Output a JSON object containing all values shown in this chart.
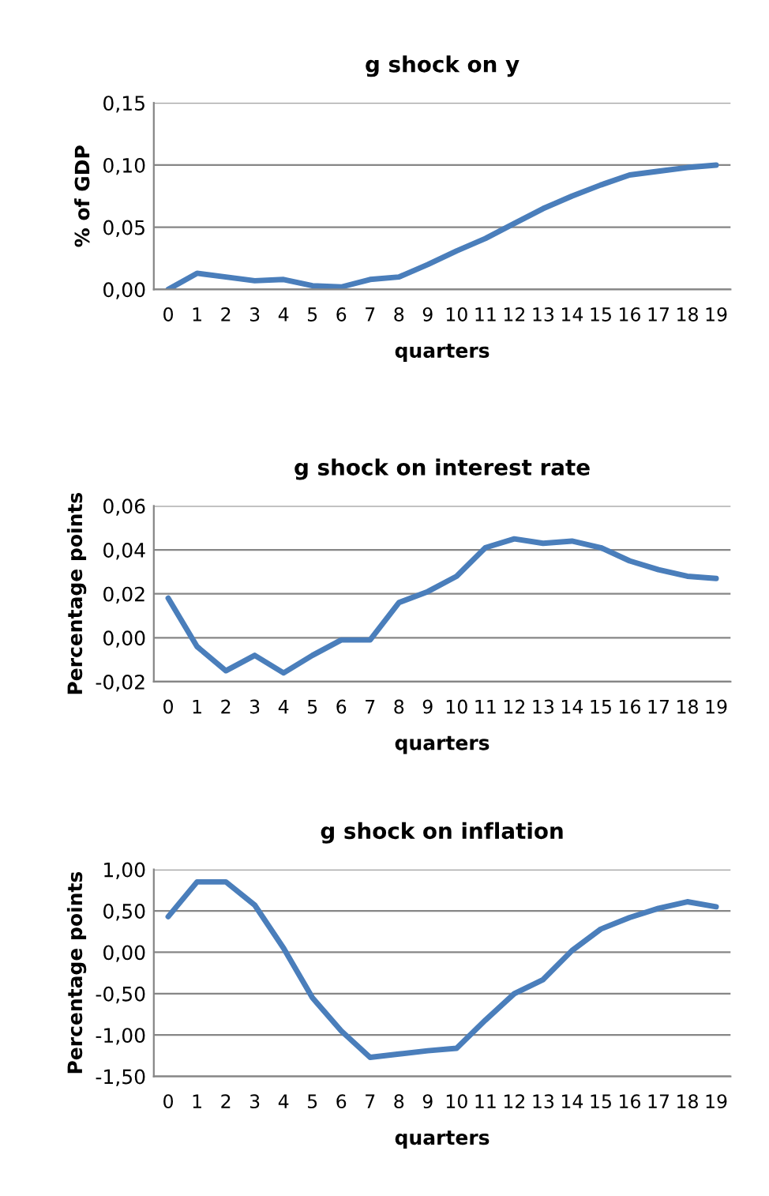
{
  "chart_data": [
    {
      "type": "line",
      "title": "g shock on y",
      "xlabel": "quarters",
      "ylabel": "% of GDP",
      "categories": [
        "0",
        "1",
        "2",
        "3",
        "4",
        "5",
        "6",
        "7",
        "8",
        "9",
        "10",
        "11",
        "12",
        "13",
        "14",
        "15",
        "16",
        "17",
        "18",
        "19"
      ],
      "series": [
        {
          "color": "#4a7ebb",
          "values": [
            0.0,
            0.013,
            0.01,
            0.007,
            0.008,
            0.003,
            0.002,
            0.008,
            0.01,
            0.02,
            0.031,
            0.041,
            0.053,
            0.065,
            0.075,
            0.084,
            0.092,
            0.095,
            0.098,
            0.1
          ]
        }
      ],
      "ylim": [
        0,
        0.15
      ],
      "yticks": [
        {
          "value": 0,
          "label": "0,00"
        },
        {
          "value": 0.05,
          "label": "0,05"
        },
        {
          "value": 0.1,
          "label": "0,10"
        },
        {
          "value": 0.15,
          "label": "0,15"
        }
      ],
      "grid": "y"
    },
    {
      "type": "line",
      "title": "g shock on interest rate",
      "xlabel": "quarters",
      "ylabel": "Percentage points",
      "categories": [
        "0",
        "1",
        "2",
        "3",
        "4",
        "5",
        "6",
        "7",
        "8",
        "9",
        "10",
        "11",
        "12",
        "13",
        "14",
        "15",
        "16",
        "17",
        "18",
        "19"
      ],
      "series": [
        {
          "color": "#4a7ebb",
          "values": [
            0.018,
            -0.004,
            -0.015,
            -0.008,
            -0.016,
            -0.008,
            -0.001,
            -0.001,
            0.016,
            0.021,
            0.028,
            0.041,
            0.045,
            0.043,
            0.044,
            0.041,
            0.035,
            0.031,
            0.028,
            0.027
          ]
        }
      ],
      "ylim": [
        -0.02,
        0.06
      ],
      "yticks": [
        {
          "value": -0.02,
          "label": "-0,02"
        },
        {
          "value": 0,
          "label": "0,00"
        },
        {
          "value": 0.02,
          "label": "0,02"
        },
        {
          "value": 0.04,
          "label": "0,04"
        },
        {
          "value": 0.06,
          "label": "0,06"
        }
      ],
      "grid": "y"
    },
    {
      "type": "line",
      "title": "g shock on inflation",
      "xlabel": "quarters",
      "ylabel": "Percentage points",
      "categories": [
        "0",
        "1",
        "2",
        "3",
        "4",
        "5",
        "6",
        "7",
        "8",
        "9",
        "10",
        "11",
        "12",
        "13",
        "14",
        "15",
        "16",
        "17",
        "18",
        "19"
      ],
      "series": [
        {
          "color": "#4a7ebb",
          "values": [
            0.43,
            0.85,
            0.85,
            0.57,
            0.05,
            -0.55,
            -0.95,
            -1.27,
            -1.23,
            -1.19,
            -1.16,
            -0.82,
            -0.5,
            -0.33,
            0.02,
            0.28,
            0.42,
            0.53,
            0.61,
            0.55
          ]
        }
      ],
      "ylim": [
        -1.5,
        1.0
      ],
      "yticks": [
        {
          "value": -1.5,
          "label": "-1,50"
        },
        {
          "value": -1.0,
          "label": "-1,00"
        },
        {
          "value": -0.5,
          "label": "-0,50"
        },
        {
          "value": 0,
          "label": "0,00"
        },
        {
          "value": 0.5,
          "label": "0,50"
        },
        {
          "value": 1.0,
          "label": "1,00"
        }
      ],
      "grid": "y"
    }
  ]
}
